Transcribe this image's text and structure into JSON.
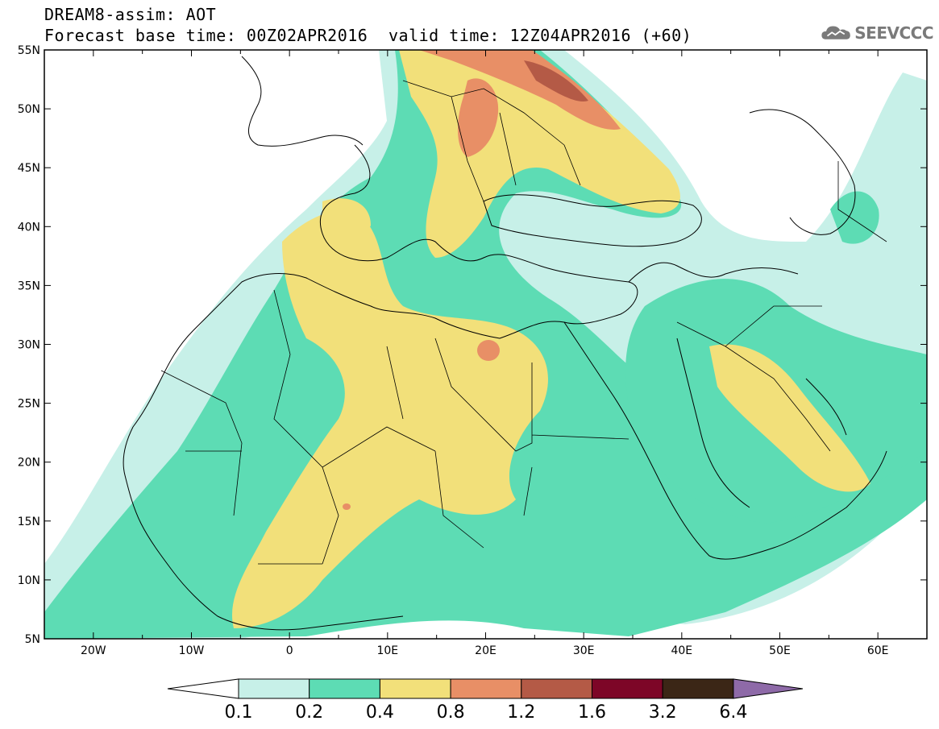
{
  "header": {
    "title": "DREAM8-assim: AOT",
    "base_time": "Forecast base time: 00Z02APR2016",
    "valid_time": "valid time: 12Z04APR2016 (+60)"
  },
  "logo": {
    "text": "SEEVCCC",
    "icon": "cloud-icon",
    "color": "#7a7a7a"
  },
  "map": {
    "lon_range": [
      -25,
      65
    ],
    "lat_range": [
      5,
      55
    ],
    "lon_ticks": [
      "20W",
      "10W",
      "0",
      "10E",
      "20E",
      "30E",
      "40E",
      "50E",
      "60E"
    ],
    "lat_ticks": [
      "5N",
      "10N",
      "15N",
      "20N",
      "25N",
      "30N",
      "35N",
      "40N",
      "45N",
      "50N",
      "55N"
    ]
  },
  "colorbar": {
    "levels": [
      "0.1",
      "0.2",
      "0.4",
      "0.8",
      "1.2",
      "1.6",
      "3.2",
      "6.4"
    ],
    "colors": [
      "#ffffff",
      "#c7f0e8",
      "#5ddcb4",
      "#f2e07a",
      "#e88f66",
      "#b45a46",
      "#7d0627",
      "#3b2616",
      "#8e6aa8"
    ]
  }
}
